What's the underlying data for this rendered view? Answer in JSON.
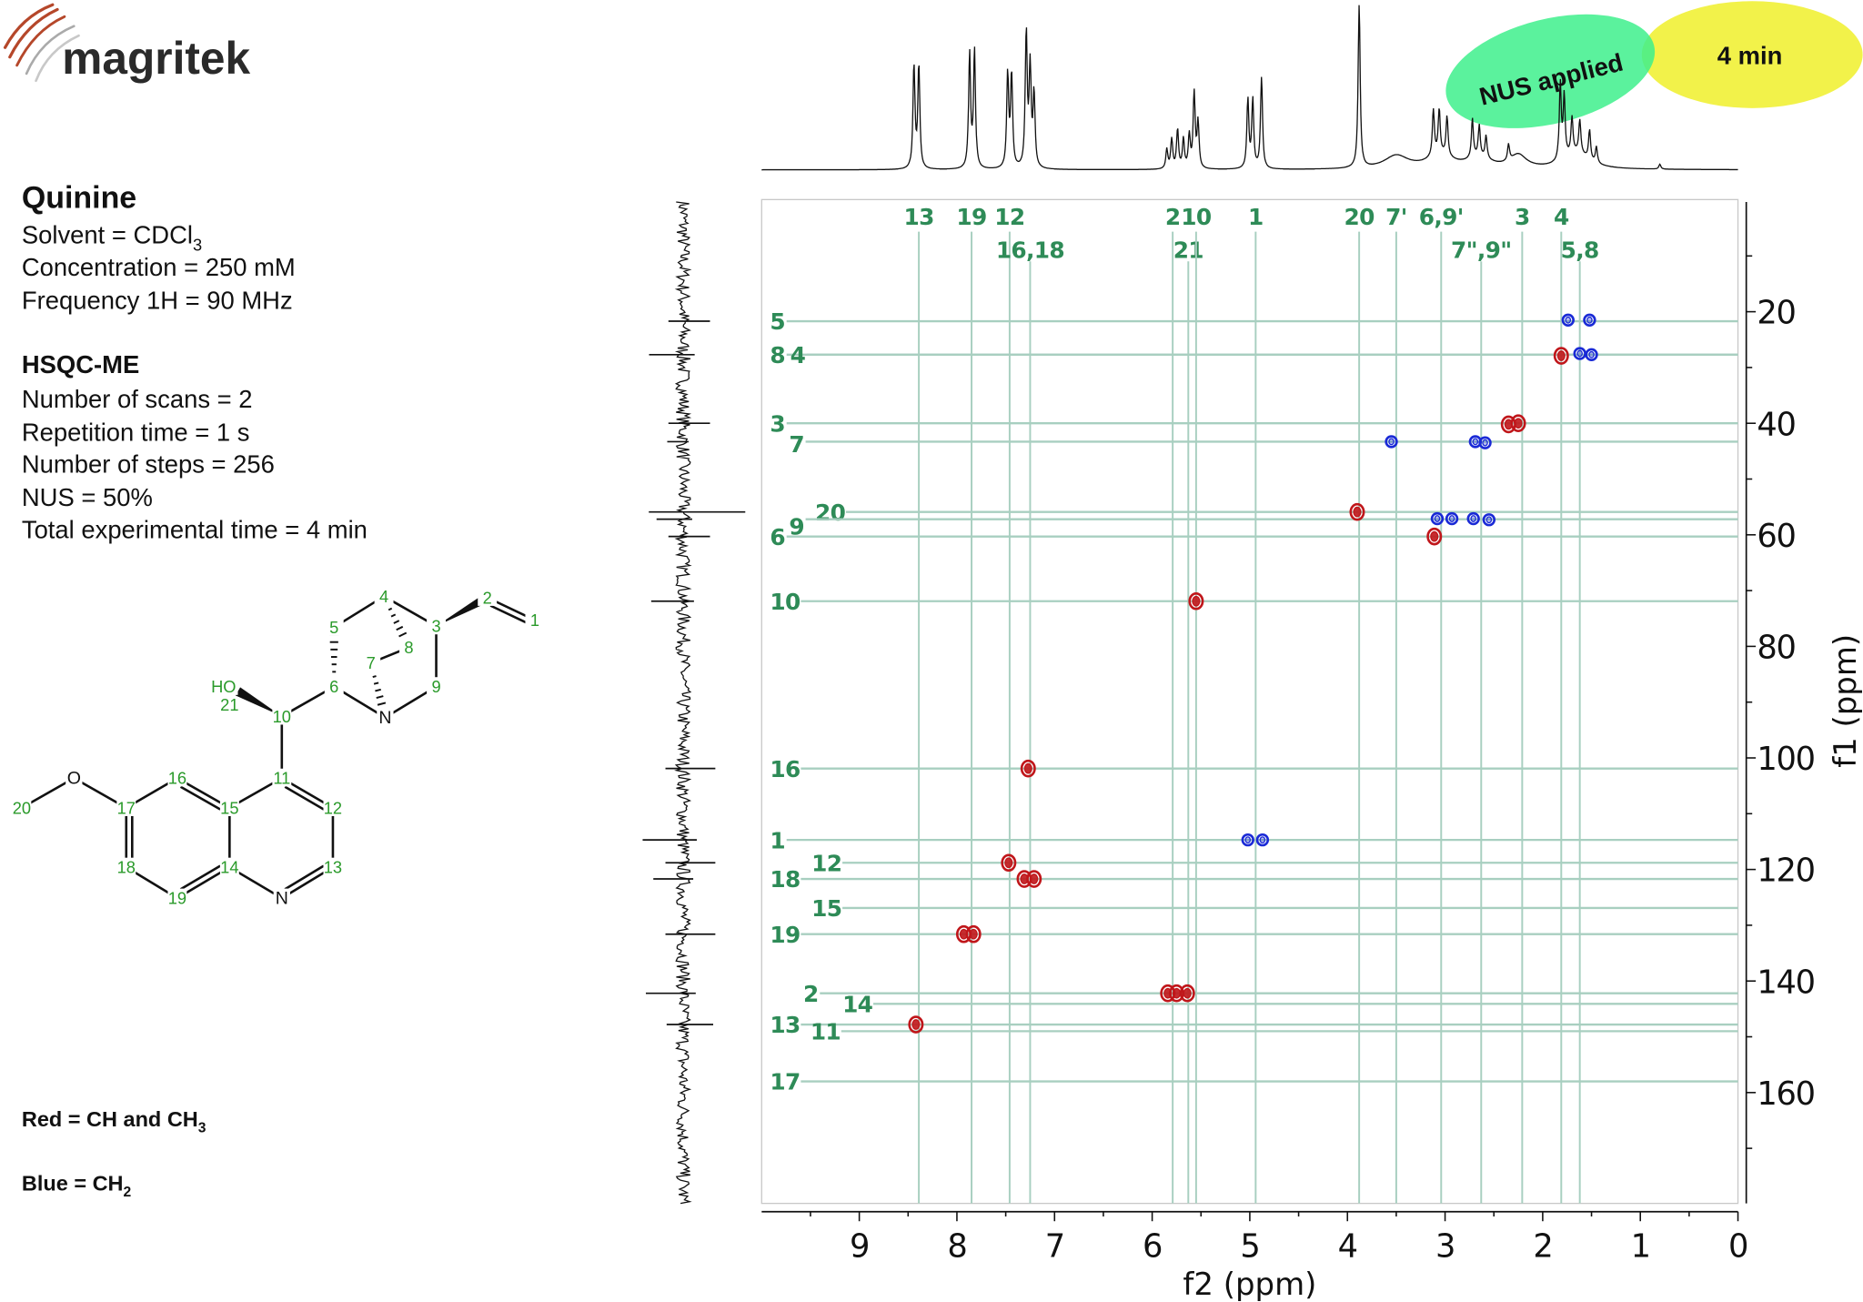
{
  "logo": {
    "text": "magritek"
  },
  "info": {
    "title": "Quinine",
    "solvent_prefix": "Solvent = CDCl",
    "solvent_sub": "3",
    "concentration": "Concentration = 250 mM",
    "frequency": "Frequency 1H = 90 MHz",
    "method": "HSQC-ME",
    "params": [
      "Number of scans = 2",
      "Repetition time = 1 s",
      "Number of steps = 256",
      "NUS = 50%",
      "Total experimental time =  4 min"
    ]
  },
  "legend": {
    "red_prefix": "Red = CH and CH",
    "red_sub": "3",
    "blue_prefix": "Blue = CH",
    "blue_sub": "2"
  },
  "badges": {
    "nus": "NUS applied",
    "time": "4 min",
    "nus_color": "#3ef08c",
    "time_color": "#f2f24a"
  },
  "structure": {
    "atom_labels": [
      "1",
      "2",
      "3",
      "4",
      "5",
      "6",
      "7",
      "8",
      "9",
      "10",
      "11",
      "12",
      "13",
      "14",
      "15",
      "16",
      "17",
      "18",
      "19",
      "20",
      "21"
    ],
    "hetero_labels": {
      "n_bridge": "N",
      "n_ring": "N",
      "o_methoxy": "O",
      "hydroxyl": "HO"
    }
  },
  "colors": {
    "ch_ch3": "#c0161a",
    "ch2": "#1a2ad6",
    "guide": "#a8cfc0",
    "assignment": "#2e8b57"
  },
  "chart_data": {
    "type": "scatter",
    "xlabel": "f2 (ppm)",
    "ylabel": "f1 (ppm)",
    "xlim": [
      10,
      0
    ],
    "ylim": [
      0,
      180
    ],
    "xticks": [
      "0",
      "1",
      "2",
      "3",
      "4",
      "5",
      "6",
      "7",
      "8",
      "9"
    ],
    "yticks": [
      "20",
      "40",
      "60",
      "80",
      "100",
      "120",
      "140",
      "160"
    ],
    "peaks": [
      {
        "f2": 1.74,
        "f1": 21.5,
        "phase": "CH2"
      },
      {
        "f2": 1.52,
        "f1": 21.5,
        "phase": "CH2"
      },
      {
        "f2": 1.81,
        "f1": 27.9,
        "phase": "CH/CH3"
      },
      {
        "f2": 1.62,
        "f1": 27.5,
        "phase": "CH2"
      },
      {
        "f2": 1.5,
        "f1": 27.7,
        "phase": "CH2"
      },
      {
        "f2": 2.25,
        "f1": 40.0,
        "phase": "CH/CH3"
      },
      {
        "f2": 2.35,
        "f1": 40.2,
        "phase": "CH/CH3"
      },
      {
        "f2": 3.55,
        "f1": 43.3,
        "phase": "CH2"
      },
      {
        "f2": 2.69,
        "f1": 43.3,
        "phase": "CH2"
      },
      {
        "f2": 2.59,
        "f1": 43.5,
        "phase": "CH2"
      },
      {
        "f2": 3.9,
        "f1": 55.9,
        "phase": "CH/CH3"
      },
      {
        "f2": 3.08,
        "f1": 57.1,
        "phase": "CH2"
      },
      {
        "f2": 2.93,
        "f1": 57.1,
        "phase": "CH2"
      },
      {
        "f2": 2.71,
        "f1": 57.1,
        "phase": "CH2"
      },
      {
        "f2": 2.55,
        "f1": 57.3,
        "phase": "CH2"
      },
      {
        "f2": 3.11,
        "f1": 60.3,
        "phase": "CH/CH3"
      },
      {
        "f2": 5.55,
        "f1": 71.9,
        "phase": "CH/CH3"
      },
      {
        "f2": 7.27,
        "f1": 101.9,
        "phase": "CH/CH3"
      },
      {
        "f2": 5.02,
        "f1": 114.7,
        "phase": "CH2"
      },
      {
        "f2": 4.87,
        "f1": 114.7,
        "phase": "CH2"
      },
      {
        "f2": 7.47,
        "f1": 118.8,
        "phase": "CH/CH3"
      },
      {
        "f2": 7.31,
        "f1": 121.7,
        "phase": "CH/CH3"
      },
      {
        "f2": 7.21,
        "f1": 121.7,
        "phase": "CH/CH3"
      },
      {
        "f2": 7.93,
        "f1": 131.6,
        "phase": "CH/CH3"
      },
      {
        "f2": 7.83,
        "f1": 131.6,
        "phase": "CH/CH3"
      },
      {
        "f2": 5.84,
        "f1": 142.2,
        "phase": "CH/CH3"
      },
      {
        "f2": 5.75,
        "f1": 142.2,
        "phase": "CH/CH3"
      },
      {
        "f2": 5.64,
        "f1": 142.2,
        "phase": "CH/CH3"
      },
      {
        "f2": 8.42,
        "f1": 147.8,
        "phase": "CH/CH3"
      }
    ],
    "h_assignments": [
      {
        "label": "13",
        "ppm": 8.39
      },
      {
        "label": "19",
        "ppm": 7.85
      },
      {
        "label": "12",
        "ppm": 7.46
      },
      {
        "label": "16,18",
        "ppm": 7.25
      },
      {
        "label": "2",
        "ppm": 5.79
      },
      {
        "label": "21",
        "ppm": 5.63
      },
      {
        "label": "10",
        "ppm": 5.55
      },
      {
        "label": "1",
        "ppm": 4.94
      },
      {
        "label": "20",
        "ppm": 3.88
      },
      {
        "label": "7'",
        "ppm": 3.5
      },
      {
        "label": "6,9'",
        "ppm": 3.04
      },
      {
        "label": "7\",9\"",
        "ppm": 2.63
      },
      {
        "label": "3",
        "ppm": 2.21
      },
      {
        "label": "4",
        "ppm": 1.81
      },
      {
        "label": "5,8",
        "ppm": 1.62
      }
    ],
    "c_assignments": [
      {
        "label": "5",
        "ppm": 21.7
      },
      {
        "label": "8",
        "ppm": 27.7
      },
      {
        "label": "4",
        "ppm": 27.7
      },
      {
        "label": "3",
        "ppm": 40.0
      },
      {
        "label": "7",
        "ppm": 43.3
      },
      {
        "label": "20",
        "ppm": 55.9
      },
      {
        "label": "9",
        "ppm": 57.2
      },
      {
        "label": "6",
        "ppm": 60.3
      },
      {
        "label": "10",
        "ppm": 71.9
      },
      {
        "label": "16",
        "ppm": 101.9
      },
      {
        "label": "1",
        "ppm": 114.7
      },
      {
        "label": "12",
        "ppm": 118.8
      },
      {
        "label": "18",
        "ppm": 121.7
      },
      {
        "label": "15",
        "ppm": 126.9
      },
      {
        "label": "19",
        "ppm": 131.6
      },
      {
        "label": "2",
        "ppm": 142.2
      },
      {
        "label": "14",
        "ppm": 144.1
      },
      {
        "label": "13",
        "ppm": 147.8
      },
      {
        "label": "11",
        "ppm": 149.0
      },
      {
        "label": "17",
        "ppm": 158.0
      }
    ],
    "proton_projection_peaks": [
      {
        "ppm": 8.44,
        "height": 0.63
      },
      {
        "ppm": 8.39,
        "height": 0.63
      },
      {
        "ppm": 7.87,
        "height": 0.7
      },
      {
        "ppm": 7.82,
        "height": 0.72
      },
      {
        "ppm": 7.48,
        "height": 0.57
      },
      {
        "ppm": 7.44,
        "height": 0.57
      },
      {
        "ppm": 7.29,
        "height": 0.83
      },
      {
        "ppm": 7.25,
        "height": 0.6
      },
      {
        "ppm": 7.21,
        "height": 0.45
      },
      {
        "ppm": 5.85,
        "height": 0.12
      },
      {
        "ppm": 5.8,
        "height": 0.18
      },
      {
        "ppm": 5.74,
        "height": 0.24
      },
      {
        "ppm": 5.68,
        "height": 0.18
      },
      {
        "ppm": 5.62,
        "height": 0.2
      },
      {
        "ppm": 5.57,
        "height": 0.46
      },
      {
        "ppm": 5.53,
        "height": 0.28
      },
      {
        "ppm": 5.02,
        "height": 0.42
      },
      {
        "ppm": 4.97,
        "height": 0.42
      },
      {
        "ppm": 4.88,
        "height": 0.56
      },
      {
        "ppm": 3.88,
        "height": 1.0
      },
      {
        "ppm": 3.5,
        "height": 0.08,
        "width": 0.15
      },
      {
        "ppm": 3.12,
        "height": 0.28
      },
      {
        "ppm": 3.06,
        "height": 0.27
      },
      {
        "ppm": 2.98,
        "height": 0.24
      },
      {
        "ppm": 3.05,
        "height": 0.08,
        "width": 0.15
      },
      {
        "ppm": 2.72,
        "height": 0.24
      },
      {
        "ppm": 2.65,
        "height": 0.19
      },
      {
        "ppm": 2.58,
        "height": 0.14
      },
      {
        "ppm": 2.65,
        "height": 0.06,
        "width": 0.15
      },
      {
        "ppm": 2.35,
        "height": 0.1
      },
      {
        "ppm": 2.25,
        "height": 0.08,
        "width": 0.1
      },
      {
        "ppm": 1.82,
        "height": 0.47
      },
      {
        "ppm": 1.78,
        "height": 0.38
      },
      {
        "ppm": 1.7,
        "height": 0.22
      },
      {
        "ppm": 1.62,
        "height": 0.2
      },
      {
        "ppm": 1.52,
        "height": 0.18
      },
      {
        "ppm": 1.45,
        "height": 0.1
      },
      {
        "ppm": 1.65,
        "height": 0.1,
        "width": 0.15
      },
      {
        "ppm": 0.8,
        "height": 0.03
      }
    ],
    "carbon_projection_peaks": [
      {
        "ppm": 21.7,
        "intensity": 25
      },
      {
        "ppm": 27.7,
        "intensity": 32
      },
      {
        "ppm": 40.0,
        "intensity": 25
      },
      {
        "ppm": 43.3,
        "intensity": 15
      },
      {
        "ppm": 55.9,
        "intensity": 58
      },
      {
        "ppm": 57.2,
        "intensity": 25
      },
      {
        "ppm": 60.3,
        "intensity": 25
      },
      {
        "ppm": 71.9,
        "intensity": 30
      },
      {
        "ppm": 101.9,
        "intensity": 30
      },
      {
        "ppm": 114.7,
        "intensity": 38
      },
      {
        "ppm": 118.8,
        "intensity": 30
      },
      {
        "ppm": 121.7,
        "intensity": 28
      },
      {
        "ppm": 131.6,
        "intensity": 30
      },
      {
        "ppm": 142.2,
        "intensity": 35
      },
      {
        "ppm": 147.8,
        "intensity": 28
      }
    ]
  }
}
